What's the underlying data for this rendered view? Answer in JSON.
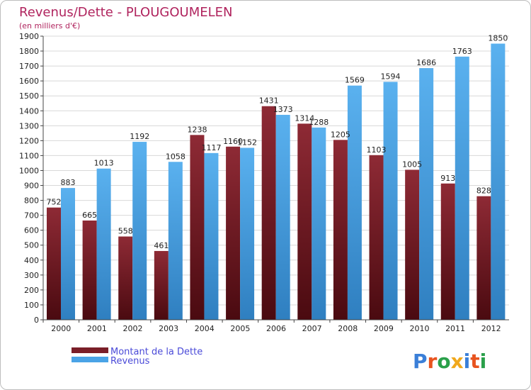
{
  "chart_data": {
    "type": "bar",
    "title": "Revenus/Dette - PLOUGOUMELEN",
    "subtitle": "(en milliers d'€)",
    "categories": [
      "2000",
      "2001",
      "2002",
      "2003",
      "2004",
      "2005",
      "2006",
      "2007",
      "2008",
      "2009",
      "2010",
      "2011",
      "2012"
    ],
    "series": [
      {
        "name": "Montant de la Dette",
        "color": "#7a1e28",
        "values": [
          752,
          665,
          558,
          461,
          1238,
          1160,
          1431,
          1314,
          1205,
          1103,
          1005,
          913,
          828
        ]
      },
      {
        "name": "Revenus",
        "color": "#4aa3e6",
        "values": [
          883,
          1013,
          1192,
          1058,
          1117,
          1152,
          1373,
          1288,
          1569,
          1594,
          1686,
          1763,
          1850
        ]
      }
    ],
    "ylim": [
      0,
      1900
    ],
    "yticks": [
      0,
      100,
      200,
      300,
      400,
      500,
      600,
      700,
      800,
      900,
      1000,
      1100,
      1200,
      1300,
      1400,
      1500,
      1600,
      1700,
      1800,
      1900
    ],
    "grid": true,
    "legend_position": "bottom-left"
  },
  "logo": {
    "text": "Proxiti",
    "letter_colors": [
      "#3a7fd8",
      "#e8541f",
      "#2aa04a",
      "#f0a81c",
      "#3a7fd8",
      "#e8541f",
      "#2aa04a"
    ]
  }
}
